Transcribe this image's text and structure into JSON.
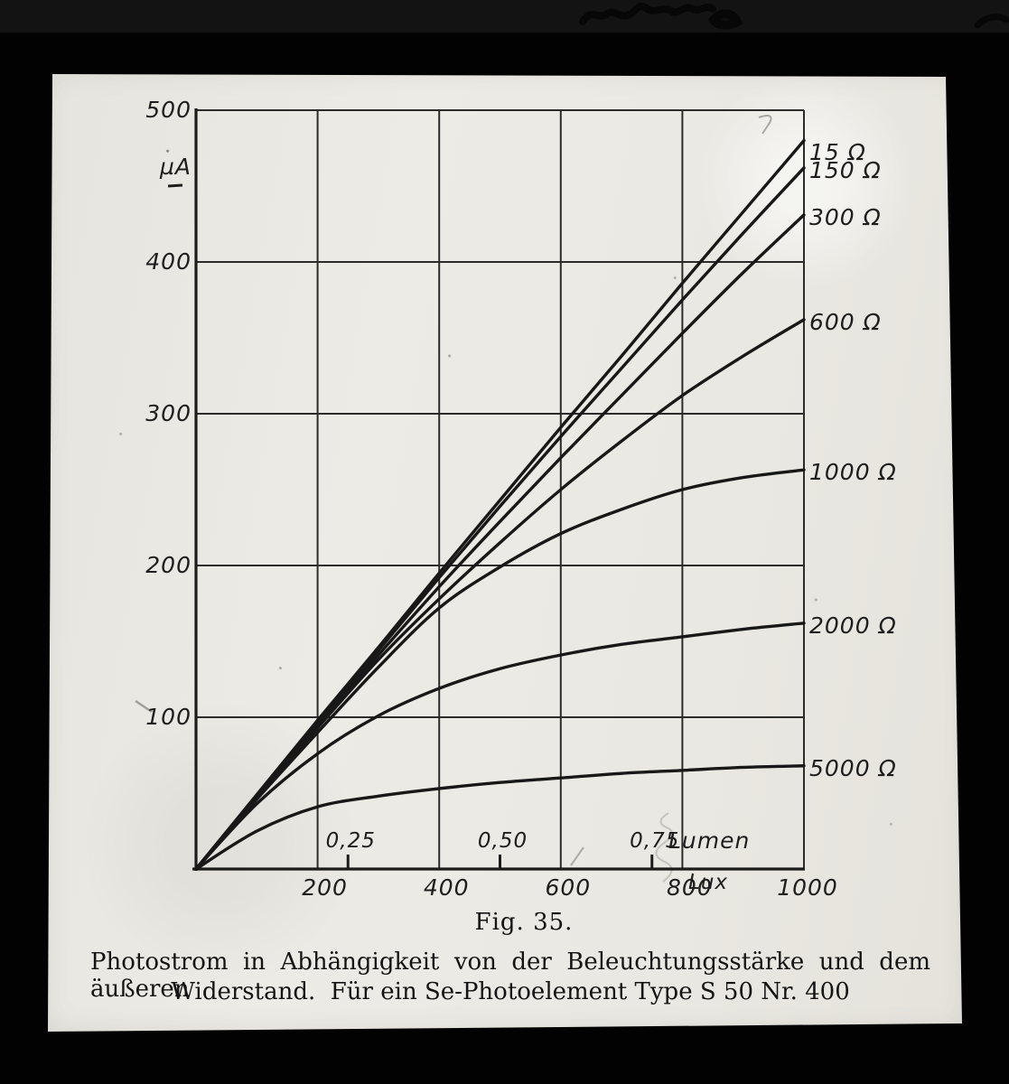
{
  "figure": {
    "fig_label": "Fig. 35.",
    "caption_line1": "Photostrom in Abhängigkeit von der Beleuchtungsstärke und dem äußeren",
    "caption_line2": "Widerstand.  Für ein Se-Photoelement Type S 50 Nr. 400"
  },
  "chart_data": {
    "type": "line",
    "title": "Fig. 35. Photostrom in Abhängigkeit von der Beleuchtungsstärke und dem äußeren Widerstand. Für ein Se-Photoelement Type S 50 Nr. 400",
    "xlabel": "Lux",
    "xlabel_secondary": "Lumen",
    "ylabel": "µA",
    "xlim": [
      0,
      1000
    ],
    "ylim": [
      0,
      500
    ],
    "grid": true,
    "legend_position": "curve-end labels at right edge",
    "x_ticks_lux": [
      200,
      400,
      600,
      800,
      1000
    ],
    "x_tick_labels_lux": [
      "200",
      "400",
      "600",
      "800",
      "1000"
    ],
    "x_ticks_lumen": [
      0.25,
      0.5,
      0.75
    ],
    "x_tick_labels_lumen": [
      "0,25",
      "0,50",
      "0,75"
    ],
    "y_ticks": [
      100,
      200,
      300,
      400,
      500
    ],
    "y_tick_labels": [
      "100",
      "200",
      "300",
      "400",
      "500"
    ],
    "x_sample_lux": [
      0,
      100,
      200,
      300,
      400,
      500,
      600,
      700,
      800,
      900,
      1000
    ],
    "series": [
      {
        "label": "15 Ω",
        "resistance_ohm": 15,
        "values": [
          0,
          49,
          98,
          146,
          195,
          243,
          291,
          338,
          386,
          433,
          480
        ]
      },
      {
        "label": "150 Ω",
        "resistance_ohm": 150,
        "values": [
          0,
          48,
          96,
          144,
          192,
          239,
          285,
          330,
          375,
          419,
          462
        ]
      },
      {
        "label": "300 Ω",
        "resistance_ohm": 300,
        "values": [
          0,
          48,
          95,
          141,
          186,
          229,
          271,
          312,
          353,
          393,
          431
        ]
      },
      {
        "label": "600 Ω",
        "resistance_ohm": 600,
        "values": [
          0,
          47,
          93,
          138,
          178,
          215,
          250,
          282,
          312,
          338,
          362
        ]
      },
      {
        "label": "1000 Ω",
        "resistance_ohm": 1000,
        "values": [
          0,
          46,
          90,
          133,
          172,
          199,
          221,
          237,
          250,
          258,
          263
        ]
      },
      {
        "label": "2000 Ω",
        "resistance_ohm": 2000,
        "values": [
          0,
          43,
          76,
          101,
          119,
          132,
          141,
          148,
          153,
          158,
          162
        ]
      },
      {
        "label": "5000 Ω",
        "resistance_ohm": 5000,
        "values": [
          0,
          25,
          41,
          48,
          53,
          57,
          60,
          63,
          65,
          67,
          68
        ]
      }
    ]
  }
}
